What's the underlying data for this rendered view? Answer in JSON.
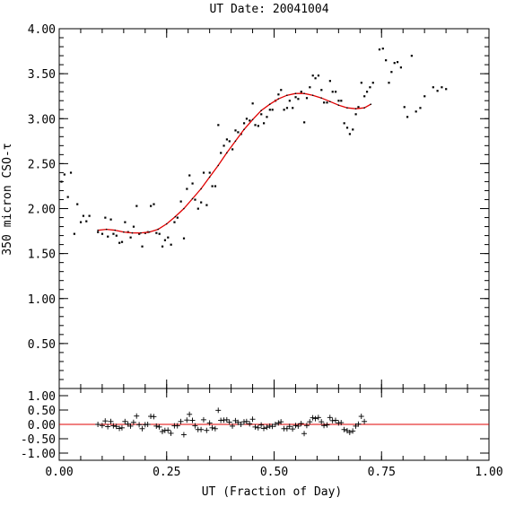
{
  "chart_data": {
    "type": "scatter",
    "title": "UT Date: 20041004",
    "xlabel": "UT (Fraction of Day)",
    "ylabel": "350 micron CSO-τ",
    "xlim": [
      0,
      1
    ],
    "main": {
      "ylim": [
        0,
        4
      ],
      "yticks": [
        "0.50",
        "1.00",
        "1.50",
        "2.00",
        "2.50",
        "3.00",
        "3.50",
        "4.00"
      ],
      "points": [
        [
          0.005,
          2.3
        ],
        [
          0.012,
          2.38
        ],
        [
          0.02,
          2.13
        ],
        [
          0.027,
          2.4
        ],
        [
          0.035,
          1.72
        ],
        [
          0.042,
          2.05
        ],
        [
          0.05,
          1.85
        ],
        [
          0.056,
          1.92
        ],
        [
          0.063,
          1.86
        ],
        [
          0.07,
          1.92
        ],
        [
          0.09,
          1.74
        ],
        [
          0.1,
          1.72
        ],
        [
          0.107,
          1.9
        ],
        [
          0.113,
          1.69
        ],
        [
          0.12,
          1.88
        ],
        [
          0.126,
          1.72
        ],
        [
          0.133,
          1.7
        ],
        [
          0.14,
          1.62
        ],
        [
          0.146,
          1.63
        ],
        [
          0.153,
          1.85
        ],
        [
          0.16,
          1.74
        ],
        [
          0.166,
          1.68
        ],
        [
          0.173,
          1.8
        ],
        [
          0.18,
          2.03
        ],
        [
          0.186,
          1.72
        ],
        [
          0.193,
          1.58
        ],
        [
          0.2,
          1.73
        ],
        [
          0.206,
          1.74
        ],
        [
          0.213,
          2.03
        ],
        [
          0.22,
          2.05
        ],
        [
          0.226,
          1.73
        ],
        [
          0.233,
          1.72
        ],
        [
          0.24,
          1.58
        ],
        [
          0.246,
          1.65
        ],
        [
          0.253,
          1.68
        ],
        [
          0.26,
          1.6
        ],
        [
          0.268,
          1.85
        ],
        [
          0.275,
          1.9
        ],
        [
          0.283,
          2.08
        ],
        [
          0.29,
          1.67
        ],
        [
          0.297,
          2.22
        ],
        [
          0.303,
          2.37
        ],
        [
          0.31,
          2.28
        ],
        [
          0.316,
          2.1
        ],
        [
          0.323,
          2.0
        ],
        [
          0.33,
          2.07
        ],
        [
          0.336,
          2.4
        ],
        [
          0.343,
          2.04
        ],
        [
          0.35,
          2.4
        ],
        [
          0.356,
          2.25
        ],
        [
          0.363,
          2.25
        ],
        [
          0.37,
          2.93
        ],
        [
          0.376,
          2.62
        ],
        [
          0.383,
          2.7
        ],
        [
          0.39,
          2.77
        ],
        [
          0.396,
          2.75
        ],
        [
          0.403,
          2.66
        ],
        [
          0.41,
          2.87
        ],
        [
          0.416,
          2.85
        ],
        [
          0.423,
          2.83
        ],
        [
          0.43,
          2.95
        ],
        [
          0.436,
          3.0
        ],
        [
          0.443,
          2.98
        ],
        [
          0.45,
          3.17
        ],
        [
          0.456,
          2.93
        ],
        [
          0.463,
          2.92
        ],
        [
          0.47,
          3.05
        ],
        [
          0.476,
          2.95
        ],
        [
          0.483,
          3.02
        ],
        [
          0.49,
          3.1
        ],
        [
          0.496,
          3.1
        ],
        [
          0.503,
          3.2
        ],
        [
          0.51,
          3.27
        ],
        [
          0.516,
          3.32
        ],
        [
          0.523,
          3.1
        ],
        [
          0.53,
          3.12
        ],
        [
          0.536,
          3.2
        ],
        [
          0.543,
          3.12
        ],
        [
          0.55,
          3.24
        ],
        [
          0.556,
          3.22
        ],
        [
          0.563,
          3.3
        ],
        [
          0.57,
          2.96
        ],
        [
          0.576,
          3.23
        ],
        [
          0.583,
          3.35
        ],
        [
          0.59,
          3.48
        ],
        [
          0.596,
          3.45
        ],
        [
          0.603,
          3.48
        ],
        [
          0.61,
          3.32
        ],
        [
          0.616,
          3.18
        ],
        [
          0.623,
          3.18
        ],
        [
          0.63,
          3.42
        ],
        [
          0.636,
          3.3
        ],
        [
          0.643,
          3.3
        ],
        [
          0.65,
          3.2
        ],
        [
          0.656,
          3.2
        ],
        [
          0.663,
          2.95
        ],
        [
          0.67,
          2.9
        ],
        [
          0.676,
          2.83
        ],
        [
          0.683,
          2.88
        ],
        [
          0.69,
          3.05
        ],
        [
          0.696,
          3.13
        ],
        [
          0.703,
          3.4
        ],
        [
          0.71,
          3.25
        ],
        [
          0.716,
          3.3
        ],
        [
          0.723,
          3.35
        ],
        [
          0.73,
          3.4
        ],
        [
          0.745,
          3.77
        ],
        [
          0.753,
          3.78
        ],
        [
          0.76,
          3.65
        ],
        [
          0.767,
          3.4
        ],
        [
          0.773,
          3.52
        ],
        [
          0.78,
          3.62
        ],
        [
          0.787,
          3.63
        ],
        [
          0.795,
          3.57
        ],
        [
          0.803,
          3.13
        ],
        [
          0.81,
          3.02
        ],
        [
          0.82,
          3.7
        ],
        [
          0.83,
          3.08
        ],
        [
          0.84,
          3.12
        ],
        [
          0.85,
          3.25
        ],
        [
          0.87,
          3.35
        ],
        [
          0.88,
          3.31
        ],
        [
          0.89,
          3.35
        ],
        [
          0.9,
          3.33
        ]
      ],
      "fit": [
        [
          0.09,
          1.76
        ],
        [
          0.11,
          1.77
        ],
        [
          0.13,
          1.76
        ],
        [
          0.15,
          1.74
        ],
        [
          0.17,
          1.73
        ],
        [
          0.19,
          1.73
        ],
        [
          0.21,
          1.74
        ],
        [
          0.23,
          1.77
        ],
        [
          0.25,
          1.83
        ],
        [
          0.27,
          1.91
        ],
        [
          0.29,
          2.0
        ],
        [
          0.31,
          2.11
        ],
        [
          0.33,
          2.22
        ],
        [
          0.35,
          2.35
        ],
        [
          0.37,
          2.48
        ],
        [
          0.39,
          2.62
        ],
        [
          0.41,
          2.75
        ],
        [
          0.43,
          2.88
        ],
        [
          0.45,
          2.99
        ],
        [
          0.47,
          3.09
        ],
        [
          0.49,
          3.16
        ],
        [
          0.51,
          3.22
        ],
        [
          0.53,
          3.26
        ],
        [
          0.55,
          3.28
        ],
        [
          0.57,
          3.28
        ],
        [
          0.59,
          3.26
        ],
        [
          0.61,
          3.23
        ],
        [
          0.63,
          3.19
        ],
        [
          0.65,
          3.15
        ],
        [
          0.67,
          3.12
        ],
        [
          0.69,
          3.11
        ],
        [
          0.71,
          3.12
        ],
        [
          0.725,
          3.16
        ]
      ]
    },
    "residual": {
      "ylim": [
        -1.25,
        1.25
      ],
      "yticks": [
        "-1.00",
        "-0.50",
        "0.00",
        "0.50",
        "1.00"
      ],
      "points": [
        [
          0.09,
          0.0
        ],
        [
          0.1,
          -0.04
        ],
        [
          0.107,
          0.12
        ],
        [
          0.113,
          -0.08
        ],
        [
          0.12,
          0.1
        ],
        [
          0.126,
          -0.05
        ],
        [
          0.133,
          -0.07
        ],
        [
          0.14,
          -0.14
        ],
        [
          0.146,
          -0.12
        ],
        [
          0.153,
          0.1
        ],
        [
          0.16,
          0.01
        ],
        [
          0.166,
          -0.06
        ],
        [
          0.173,
          0.07
        ],
        [
          0.18,
          0.29
        ],
        [
          0.186,
          -0.01
        ],
        [
          0.193,
          -0.15
        ],
        [
          0.2,
          -0.01
        ],
        [
          0.206,
          0.0
        ],
        [
          0.213,
          0.28
        ],
        [
          0.22,
          0.27
        ],
        [
          0.226,
          -0.06
        ],
        [
          0.233,
          -0.09
        ],
        [
          0.24,
          -0.25
        ],
        [
          0.246,
          -0.21
        ],
        [
          0.253,
          -0.2
        ],
        [
          0.26,
          -0.31
        ],
        [
          0.268,
          -0.05
        ],
        [
          0.275,
          -0.05
        ],
        [
          0.283,
          0.1
        ],
        [
          0.29,
          -0.36
        ],
        [
          0.297,
          0.15
        ],
        [
          0.303,
          0.35
        ],
        [
          0.31,
          0.14
        ],
        [
          0.316,
          -0.05
        ],
        [
          0.323,
          -0.18
        ],
        [
          0.33,
          -0.18
        ],
        [
          0.336,
          0.16
        ],
        [
          0.343,
          -0.21
        ],
        [
          0.35,
          0.05
        ],
        [
          0.356,
          -0.12
        ],
        [
          0.363,
          -0.15
        ],
        [
          0.37,
          0.49
        ],
        [
          0.376,
          0.14
        ],
        [
          0.383,
          0.15
        ],
        [
          0.39,
          0.16
        ],
        [
          0.396,
          0.08
        ],
        [
          0.403,
          -0.06
        ],
        [
          0.41,
          0.13
        ],
        [
          0.416,
          0.07
        ],
        [
          0.423,
          0.0
        ],
        [
          0.43,
          0.09
        ],
        [
          0.436,
          0.1
        ],
        [
          0.443,
          0.02
        ],
        [
          0.45,
          0.18
        ],
        [
          0.456,
          -0.09
        ],
        [
          0.463,
          -0.12
        ],
        [
          0.47,
          -0.02
        ],
        [
          0.476,
          -0.14
        ],
        [
          0.483,
          -0.1
        ],
        [
          0.49,
          -0.06
        ],
        [
          0.496,
          -0.07
        ],
        [
          0.503,
          0.0
        ],
        [
          0.51,
          0.05
        ],
        [
          0.516,
          0.09
        ],
        [
          0.523,
          -0.15
        ],
        [
          0.53,
          -0.15
        ],
        [
          0.536,
          -0.07
        ],
        [
          0.543,
          -0.16
        ],
        [
          0.55,
          -0.04
        ],
        [
          0.556,
          -0.06
        ],
        [
          0.563,
          0.03
        ],
        [
          0.57,
          -0.32
        ],
        [
          0.576,
          -0.04
        ],
        [
          0.583,
          0.09
        ],
        [
          0.59,
          0.23
        ],
        [
          0.596,
          0.2
        ],
        [
          0.603,
          0.24
        ],
        [
          0.61,
          0.09
        ],
        [
          0.616,
          -0.04
        ],
        [
          0.623,
          -0.02
        ],
        [
          0.63,
          0.24
        ],
        [
          0.636,
          0.13
        ],
        [
          0.643,
          0.14
        ],
        [
          0.65,
          0.05
        ],
        [
          0.656,
          0.06
        ],
        [
          0.663,
          -0.18
        ],
        [
          0.67,
          -0.22
        ],
        [
          0.676,
          -0.28
        ],
        [
          0.683,
          -0.23
        ],
        [
          0.69,
          -0.06
        ],
        [
          0.696,
          0.01
        ],
        [
          0.703,
          0.28
        ],
        [
          0.71,
          0.1
        ]
      ],
      "zero_line": 0
    },
    "xticks": [
      "0.00",
      "0.25",
      "0.50",
      "0.75",
      "1.00"
    ],
    "colors": {
      "fit": "#e00000",
      "points": "#000000",
      "axes": "#000000"
    }
  }
}
